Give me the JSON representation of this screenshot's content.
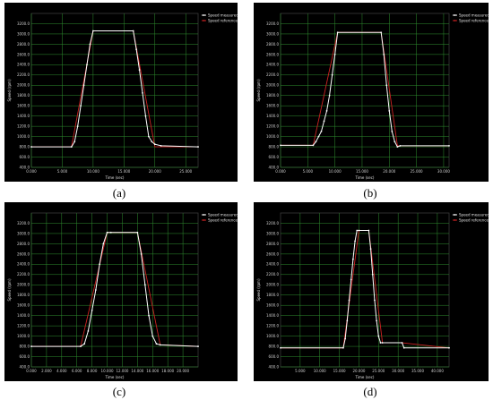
{
  "colors": {
    "background": "#000000",
    "grid": "#2f8f2f",
    "measured": "#ffffff",
    "reference": "#cc2222"
  },
  "chart_data": [
    {
      "type": "line",
      "caption": "(a)",
      "xlabel": "Time (sec)",
      "ylabel": "Speed (rpm)",
      "xlim": [
        0,
        27
      ],
      "ylim": [
        400,
        3400
      ],
      "xticks": [
        0,
        5,
        10,
        15,
        20,
        25
      ],
      "xtick_labels": [
        "0.000",
        "5.000",
        "10.000",
        "15.000",
        "20.000",
        "25.000"
      ],
      "yticks": [
        400,
        600,
        800,
        1000,
        1200,
        1400,
        1600,
        1800,
        2000,
        2200,
        2400,
        2600,
        2800,
        3000,
        3200
      ],
      "ytick_labels": [
        "400.0",
        "600.0",
        "800.0",
        "1000.0",
        "1200.0",
        "1400.0",
        "1600.0",
        "1800.0",
        "2000.0",
        "2200.0",
        "2400.0",
        "2600.0",
        "2800.0",
        "3000.0",
        "3200.0"
      ],
      "legend": [
        "Speed measured",
        "Speed reference"
      ],
      "legend_position": "top-right",
      "grid": true,
      "series": [
        {
          "name": "Speed measured",
          "x": [
            0,
            6.5,
            7,
            7.5,
            8,
            8.5,
            9,
            9.5,
            10,
            16.5,
            17,
            17.5,
            18,
            18.5,
            19,
            19.5,
            20,
            21,
            27
          ],
          "y": [
            800,
            800,
            900,
            1200,
            1600,
            2000,
            2400,
            2800,
            3060,
            3060,
            2700,
            2300,
            1850,
            1400,
            1000,
            900,
            850,
            820,
            800
          ]
        },
        {
          "name": "Speed reference",
          "x": [
            0,
            6.5,
            10,
            16.5,
            20,
            27
          ],
          "y": [
            800,
            800,
            3060,
            3060,
            800,
            800
          ]
        }
      ]
    },
    {
      "type": "line",
      "caption": "(b)",
      "xlabel": "Time (sec)",
      "ylabel": "Speed (rpm)",
      "xlim": [
        0,
        31
      ],
      "ylim": [
        400,
        3400
      ],
      "xticks": [
        0,
        5,
        10,
        15,
        20,
        25,
        30
      ],
      "xtick_labels": [
        "0.000",
        "5.000",
        "10.000",
        "15.000",
        "20.000",
        "25.000",
        "30.000"
      ],
      "yticks": [
        400,
        600,
        800,
        1000,
        1200,
        1400,
        1600,
        1800,
        2000,
        2200,
        2400,
        2600,
        2800,
        3000,
        3200
      ],
      "ytick_labels": [
        "400.0",
        "600.0",
        "800.0",
        "1000.0",
        "1200.0",
        "1400.0",
        "1600.0",
        "1800.0",
        "2000.0",
        "2200.0",
        "2400.0",
        "2600.0",
        "2800.0",
        "3000.0",
        "3200.0"
      ],
      "legend": [
        "Speed measured",
        "Speed reference"
      ],
      "legend_position": "top-right",
      "grid": true,
      "series": [
        {
          "name": "Speed measured",
          "x": [
            0,
            6,
            6.5,
            7,
            7.5,
            8,
            8.5,
            9,
            9.5,
            10,
            10.5,
            18.5,
            19,
            19.5,
            20,
            20.5,
            21,
            21.5,
            22,
            31
          ],
          "y": [
            830,
            830,
            900,
            1000,
            1100,
            1300,
            1500,
            1800,
            2200,
            2600,
            3030,
            3030,
            2600,
            2000,
            1500,
            1100,
            900,
            800,
            820,
            820
          ]
        },
        {
          "name": "Speed reference",
          "x": [
            0,
            6,
            10.5,
            18.5,
            21.5,
            31
          ],
          "y": [
            830,
            830,
            3030,
            3030,
            820,
            820
          ]
        }
      ]
    },
    {
      "type": "line",
      "caption": "(c)",
      "xlabel": "Time (sec)",
      "ylabel": "Speed (rpm)",
      "xlim": [
        0,
        22
      ],
      "ylim": [
        400,
        3400
      ],
      "xticks": [
        0,
        2,
        4,
        6,
        8,
        10,
        12,
        14,
        16,
        18,
        20
      ],
      "xtick_labels": [
        "0.000",
        "2.000",
        "4.000",
        "6.000",
        "8.000",
        "10.000",
        "12.000",
        "14.000",
        "16.000",
        "18.000",
        "20.000"
      ],
      "yticks": [
        400,
        600,
        800,
        1000,
        1200,
        1400,
        1600,
        1800,
        2000,
        2200,
        2400,
        2600,
        2800,
        3000,
        3200
      ],
      "ytick_labels": [
        "400.0",
        "600.0",
        "800.0",
        "1000.0",
        "1200.0",
        "1400.0",
        "1600.0",
        "1800.0",
        "2000.0",
        "2200.0",
        "2400.0",
        "2600.0",
        "2800.0",
        "3000.0",
        "3200.0"
      ],
      "legend": [
        "Speed measured",
        "Speed reference"
      ],
      "legend_position": "top-right",
      "grid": true,
      "series": [
        {
          "name": "Speed measured",
          "x": [
            0,
            6.5,
            7,
            7.5,
            8,
            8.5,
            9,
            9.5,
            10,
            10.5,
            14,
            14.5,
            15,
            15.5,
            16,
            16.5,
            17,
            22
          ],
          "y": [
            800,
            800,
            850,
            1100,
            1500,
            1900,
            2400,
            2800,
            3020,
            3020,
            3020,
            2600,
            2000,
            1400,
            1000,
            850,
            830,
            800
          ]
        },
        {
          "name": "Speed reference",
          "x": [
            0,
            6.5,
            10,
            14,
            17,
            22
          ],
          "y": [
            800,
            800,
            3020,
            3020,
            830,
            800
          ]
        }
      ]
    },
    {
      "type": "line",
      "caption": "(d)",
      "xlabel": "Time (sec)",
      "ylabel": "Speed (rpm)",
      "xlim": [
        0,
        43
      ],
      "ylim": [
        400,
        3400
      ],
      "xticks": [
        5,
        10,
        15,
        20,
        25,
        30,
        35,
        40
      ],
      "xtick_labels": [
        "5.000",
        "10.000",
        "15.000",
        "20.000",
        "25.000",
        "30.000",
        "35.000",
        "40.000"
      ],
      "yticks": [
        400,
        600,
        800,
        1000,
        1200,
        1400,
        1600,
        1800,
        2000,
        2200,
        2400,
        2600,
        2800,
        3000,
        3200
      ],
      "ytick_labels": [
        "400.0",
        "600.0",
        "800.0",
        "1000.0",
        "1200.0",
        "1400.0",
        "1600.0",
        "1800.0",
        "2000.0",
        "2200.0",
        "2400.0",
        "2600.0",
        "2800.0",
        "3000.0",
        "3200.0"
      ],
      "legend": [
        "Speed measured",
        "Speed reference"
      ],
      "legend_position": "top-right",
      "grid": true,
      "series": [
        {
          "name": "Speed measured",
          "x": [
            0,
            16,
            16.5,
            17,
            17.5,
            18,
            18.5,
            19,
            19.5,
            20,
            22.5,
            23,
            23.5,
            24,
            24.5,
            25,
            25.5,
            26,
            31,
            31.5,
            43
          ],
          "y": [
            770,
            770,
            950,
            1300,
            1700,
            2100,
            2500,
            2850,
            3060,
            3060,
            3060,
            2700,
            2200,
            1700,
            1300,
            1000,
            870,
            870,
            870,
            770,
            770
          ]
        },
        {
          "name": "Speed reference",
          "x": [
            0,
            16,
            20,
            22.5,
            26,
            31,
            43
          ],
          "y": [
            770,
            770,
            3060,
            3060,
            870,
            870,
            770
          ]
        }
      ]
    }
  ]
}
